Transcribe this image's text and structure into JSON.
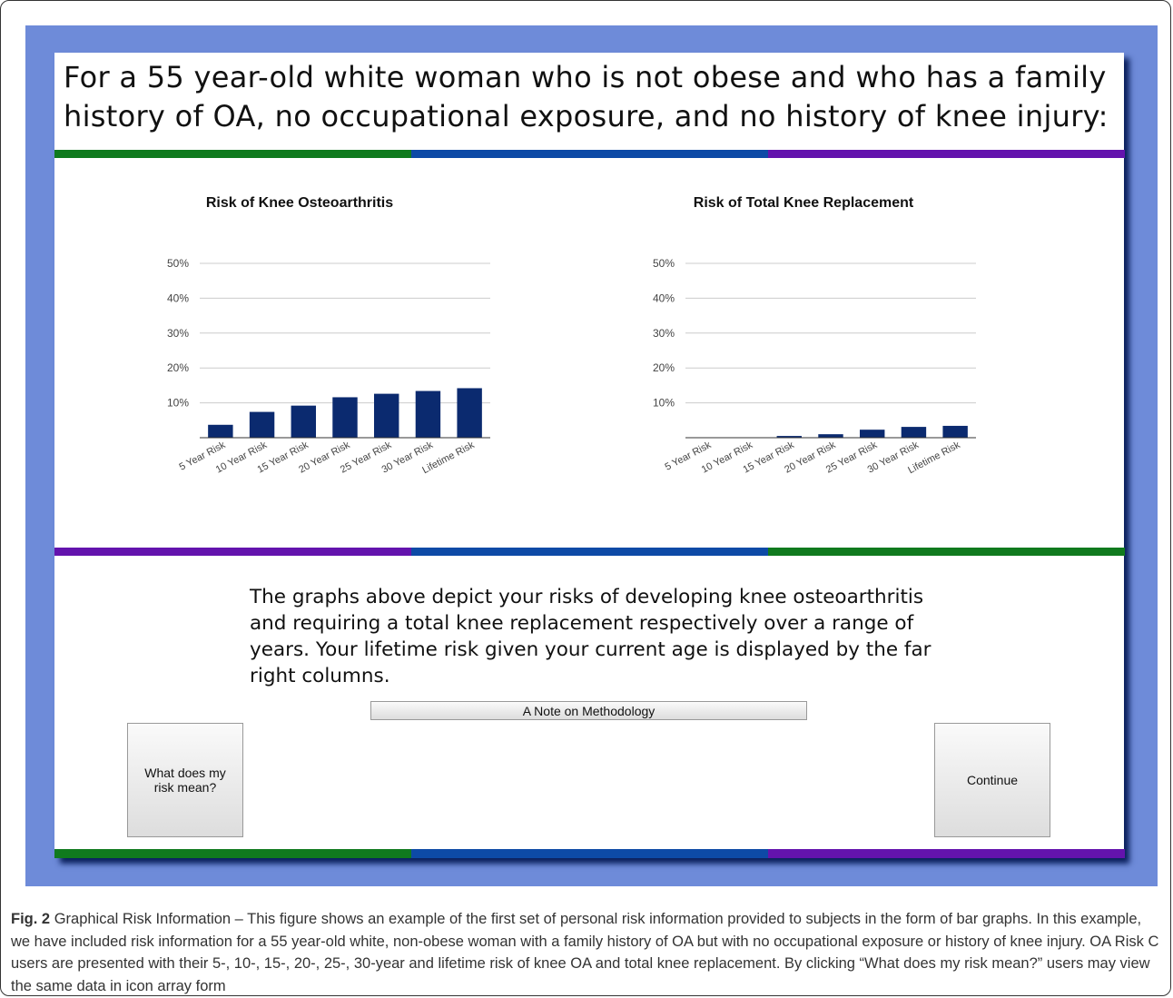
{
  "header": {
    "title": "For a 55 year-old white woman who is not obese and who has a family history of OA, no occupational exposure, and no history of knee injury:"
  },
  "chart_data": [
    {
      "type": "bar",
      "title": "Risk of Knee Osteoarthritis",
      "categories": [
        "5 Year Risk",
        "10 Year Risk",
        "15 Year Risk",
        "20 Year Risk",
        "25 Year Risk",
        "30 Year Risk",
        "Lifetime Risk"
      ],
      "values": [
        3.7,
        7.4,
        9.2,
        11.6,
        12.6,
        13.4,
        14.2
      ],
      "color": "#0b2a6f",
      "ylim": [
        0,
        50
      ],
      "yticks": [
        {
          "value": 10,
          "label": "10%"
        },
        {
          "value": 20,
          "label": "20%"
        },
        {
          "value": 30,
          "label": "30%"
        },
        {
          "value": 40,
          "label": "40%"
        },
        {
          "value": 50,
          "label": "50%"
        }
      ],
      "grid": true
    },
    {
      "type": "bar",
      "title": "Risk of Total Knee Replacement",
      "categories": [
        "5 Year Risk",
        "10 Year Risk",
        "15 Year Risk",
        "20 Year Risk",
        "25 Year Risk",
        "30 Year Risk",
        "Lifetime Risk"
      ],
      "values": [
        0,
        0,
        0.5,
        1.0,
        2.3,
        3.1,
        3.4
      ],
      "color": "#0b2a6f",
      "ylim": [
        0,
        50
      ],
      "yticks": [
        {
          "value": 10,
          "label": "10%"
        },
        {
          "value": 20,
          "label": "20%"
        },
        {
          "value": 30,
          "label": "30%"
        },
        {
          "value": 40,
          "label": "40%"
        },
        {
          "value": 50,
          "label": "50%"
        }
      ],
      "grid": true
    }
  ],
  "description": "The graphs above depict your risks of developing knee osteoarthritis and requiring a total knee replacement respectively over a range of years. Your lifetime risk given your current age is displayed by the far right columns.",
  "buttons": {
    "methodology": "A Note on Methodology",
    "meaning": "What does my risk mean?",
    "continue": "Continue"
  },
  "caption": {
    "label": "Fig. 2",
    "text": "Graphical Risk Information – This figure shows an example of the first set of personal risk information provided to subjects in the form of bar graphs. In this example, we have included risk information for a 55 year-old white, non-obese woman with a family history of OA but with no occupational exposure or history of knee injury. OA Risk C users are presented with their 5-, 10-, 15-, 20-, 25-, 30-year and lifetime risk of knee OA and total knee replacement. By clicking “What does my risk mean?” users may view the same data in icon array form"
  }
}
